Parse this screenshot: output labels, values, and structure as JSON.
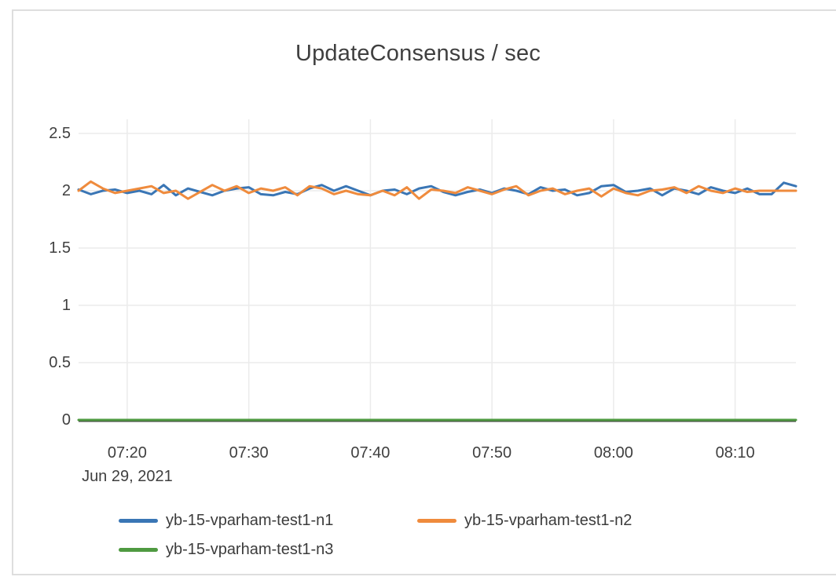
{
  "card": {
    "border_color": "#dedede",
    "background": "#ffffff"
  },
  "chart": {
    "title": "UpdateConsensus / sec",
    "date_label": "Jun 29, 2021"
  },
  "chart_data": {
    "type": "line",
    "title": "UpdateConsensus / sec",
    "xlabel": "",
    "ylabel": "",
    "x_start_time": "07:16",
    "x_end_time": "08:15",
    "x_interval_minutes": 1,
    "x_tick_labels": [
      "07:20",
      "07:30",
      "07:40",
      "07:50",
      "08:00",
      "08:10"
    ],
    "x_tick_minutes_from_start": [
      4,
      14,
      24,
      34,
      44,
      54
    ],
    "x_date_label": "Jun 29, 2021",
    "y_ticks": [
      0,
      0.5,
      1,
      1.5,
      2,
      2.5
    ],
    "y_tick_labels": [
      "0",
      "0.5",
      "1",
      "1.5",
      "2",
      "2.5"
    ],
    "ylim": [
      0,
      2.5
    ],
    "grid": true,
    "grid_color": "#ebebeb",
    "axis_line_color": "#3c3c3c",
    "legend_position": "bottom",
    "series": [
      {
        "name": "yb-15-vparham-test1-n1",
        "color": "#3a76b5",
        "values": [
          2.01,
          1.97,
          2.0,
          2.01,
          1.98,
          2.0,
          1.97,
          2.05,
          1.96,
          2.02,
          1.99,
          1.96,
          2.0,
          2.02,
          2.03,
          1.97,
          1.96,
          1.99,
          1.97,
          2.02,
          2.05,
          2.0,
          2.04,
          2.0,
          1.96,
          2.0,
          2.01,
          1.97,
          2.02,
          2.04,
          1.99,
          1.96,
          1.99,
          2.01,
          1.98,
          2.02,
          2.0,
          1.97,
          2.03,
          2.0,
          2.01,
          1.96,
          1.98,
          2.04,
          2.05,
          1.99,
          2.0,
          2.02,
          1.96,
          2.02,
          2.0,
          1.97,
          2.03,
          2.0,
          1.98,
          2.02,
          1.97,
          1.97,
          2.07,
          2.04
        ]
      },
      {
        "name": "yb-15-vparham-test1-n2",
        "color": "#ef8b3d",
        "values": [
          2.0,
          2.08,
          2.02,
          1.98,
          2.0,
          2.02,
          2.04,
          1.98,
          2.0,
          1.93,
          1.99,
          2.05,
          2.0,
          2.04,
          1.98,
          2.02,
          2.0,
          2.03,
          1.96,
          2.04,
          2.02,
          1.97,
          2.0,
          1.97,
          1.96,
          2.0,
          1.96,
          2.03,
          1.93,
          2.01,
          2.0,
          1.98,
          2.03,
          2.0,
          1.97,
          2.01,
          2.04,
          1.96,
          2.0,
          2.02,
          1.97,
          2.0,
          2.02,
          1.95,
          2.02,
          1.98,
          1.96,
          2.0,
          2.01,
          2.03,
          1.98,
          2.04,
          2.0,
          1.98,
          2.02,
          1.99,
          2.0,
          2.0,
          2.0,
          2.0
        ]
      },
      {
        "name": "yb-15-vparham-test1-n3",
        "color": "#4f9a41",
        "values": [
          0,
          0,
          0,
          0,
          0,
          0,
          0,
          0,
          0,
          0,
          0,
          0,
          0,
          0,
          0,
          0,
          0,
          0,
          0,
          0,
          0,
          0,
          0,
          0,
          0,
          0,
          0,
          0,
          0,
          0,
          0,
          0,
          0,
          0,
          0,
          0,
          0,
          0,
          0,
          0,
          0,
          0,
          0,
          0,
          0,
          0,
          0,
          0,
          0,
          0,
          0,
          0,
          0,
          0,
          0,
          0,
          0,
          0,
          0,
          0
        ]
      }
    ]
  }
}
